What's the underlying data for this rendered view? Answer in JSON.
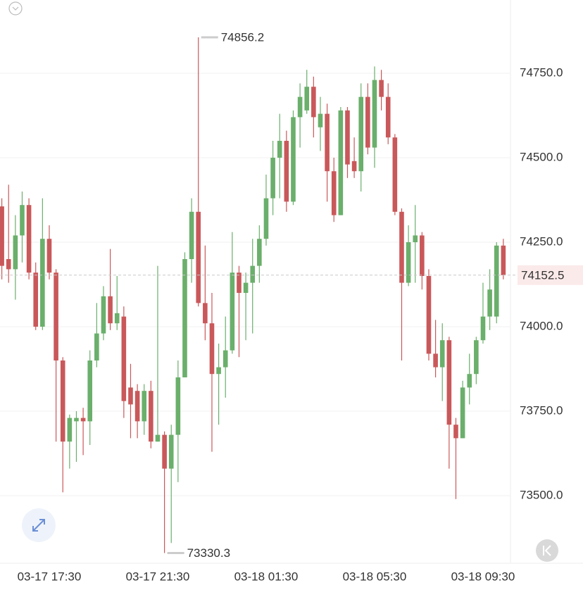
{
  "chart_data": {
    "type": "candlestick",
    "categories": [
      null,
      null,
      null,
      null,
      null,
      null,
      null,
      "03-17 17:30",
      null,
      null,
      null,
      null,
      null,
      null,
      null,
      null,
      null,
      null,
      null,
      null,
      null,
      null,
      null,
      "03-17 21:30",
      null,
      null,
      null,
      null,
      null,
      null,
      null,
      null,
      null,
      null,
      null,
      null,
      null,
      null,
      null,
      "03-18 01:30",
      null,
      null,
      null,
      null,
      null,
      null,
      null,
      null,
      null,
      null,
      null,
      null,
      null,
      null,
      null,
      "03-18 05:30",
      null,
      null,
      null,
      null,
      null,
      null,
      null,
      null,
      null,
      null,
      null,
      null,
      null,
      null,
      null,
      "03-18 09:30",
      null,
      null,
      null
    ],
    "open": [
      74356,
      74200,
      74170,
      74270,
      74360,
      74160,
      74000,
      74260,
      74160,
      73900,
      73660,
      73720,
      73730,
      73720,
      73900,
      73980,
      74090,
      74010,
      74030,
      73820,
      73810,
      73720,
      73810,
      73660,
      73680,
      73580,
      73680,
      73850,
      74200,
      74340,
      74070,
      74010,
      73860,
      73880,
      73930,
      74160,
      74100,
      74130,
      74180,
      74260,
      74380,
      74500,
      74550,
      74370,
      74620,
      74640,
      74710,
      74590,
      74630,
      74460,
      74330,
      74640,
      74490,
      74460,
      74680,
      74530,
      74730,
      74680,
      74560,
      74340,
      74130,
      74250,
      74270,
      74150,
      73920,
      73880,
      73960,
      73710,
      73670,
      73820,
      73860,
      73960,
      74030,
      74030,
      74240
    ],
    "high": [
      74380,
      74420,
      74330,
      74400,
      74380,
      74190,
      74380,
      74300,
      74170,
      73910,
      73740,
      73750,
      73760,
      73930,
      74070,
      74120,
      74230,
      74150,
      74060,
      73890,
      73830,
      73830,
      73840,
      74180,
      73690,
      73710,
      73900,
      74220,
      74380,
      74856.2,
      74240,
      74100,
      73950,
      74030,
      74280,
      74180,
      74160,
      74260,
      74300,
      74450,
      74550,
      74630,
      74580,
      74640,
      74720,
      74760,
      74740,
      74680,
      74660,
      74500,
      74650,
      74650,
      74560,
      74720,
      74720,
      74770,
      74760,
      74720,
      74570,
      74350,
      74300,
      74360,
      74280,
      74170,
      74020,
      74010,
      73970,
      73730,
      73840,
      73920,
      73970,
      74130,
      74170,
      74250,
      74260
    ],
    "low": [
      74140,
      74130,
      74080,
      74190,
      74140,
      73990,
      73990,
      74140,
      73660,
      73510,
      73580,
      73600,
      73620,
      73650,
      73880,
      73960,
      73990,
      73990,
      73730,
      73670,
      73670,
      73680,
      73640,
      73660,
      73330.3,
      73360,
      73540,
      73850,
      74130,
      74060,
      73960,
      73630,
      73710,
      73790,
      73920,
      73910,
      73960,
      73980,
      74130,
      74240,
      74330,
      74380,
      74340,
      74360,
      74530,
      74630,
      74560,
      74520,
      74370,
      74310,
      74330,
      74440,
      74440,
      74400,
      74510,
      74470,
      74640,
      74540,
      74330,
      73900,
      74120,
      74130,
      74110,
      73900,
      73850,
      73780,
      73580,
      73490,
      73670,
      73770,
      73830,
      73950,
      73990,
      74010,
      74140
    ],
    "close": [
      74180,
      74170,
      74270,
      74360,
      74160,
      74000,
      74260,
      74160,
      73900,
      73660,
      73730,
      73730,
      73720,
      73900,
      73980,
      74090,
      74010,
      74040,
      73780,
      73770,
      73720,
      73810,
      73660,
      73680,
      73580,
      73680,
      73850,
      74200,
      74340,
      74070,
      74010,
      73860,
      73880,
      73930,
      74160,
      74100,
      74130,
      74180,
      74260,
      74380,
      74500,
      74550,
      74370,
      74620,
      74680,
      74710,
      74620,
      74630,
      74460,
      74330,
      74640,
      74480,
      74460,
      74680,
      74530,
      74730,
      74680,
      74560,
      74340,
      74130,
      74250,
      74270,
      74150,
      73920,
      73880,
      73960,
      73710,
      73670,
      73820,
      73860,
      73960,
      74030,
      74110,
      74240,
      74152.5
    ],
    "up_color": "#6aaf6b",
    "down_color": "#c9585a",
    "ylim": [
      73300,
      74966.7
    ],
    "yticks": [
      {
        "value": 73500,
        "label": "73500.0"
      },
      {
        "value": 73750,
        "label": "73750.0"
      },
      {
        "value": 74000,
        "label": "74000.0"
      },
      {
        "value": 74250,
        "label": "74250.0"
      },
      {
        "value": 74500,
        "label": "74500.0"
      },
      {
        "value": 74750,
        "label": "74750.0"
      }
    ],
    "grid": true
  }
}
